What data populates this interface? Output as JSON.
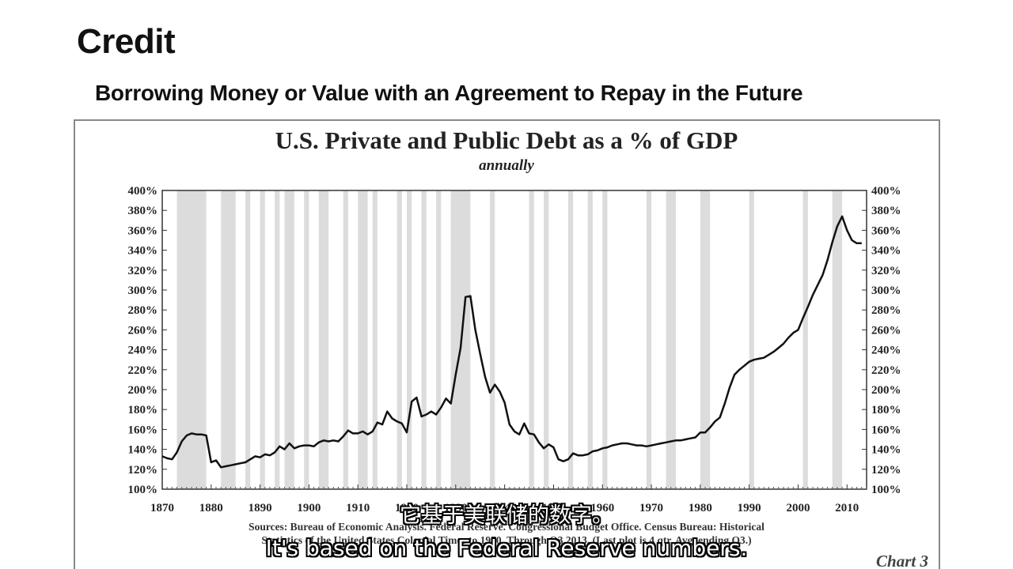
{
  "slide": {
    "title": "Credit",
    "subtitle": "Borrowing Money or Value with an Agreement to Repay in the Future"
  },
  "captions": {
    "zh": "它基于美联储的数字。",
    "en": "It's based on the Federal Reserve numbers."
  },
  "chart_data": {
    "type": "line",
    "title": "U.S. Private and Public Debt as a % of GDP",
    "subtitle": "annually",
    "xlim": [
      1870,
      2014
    ],
    "ylim": [
      100,
      400
    ],
    "y_ticks": [
      100,
      120,
      140,
      160,
      180,
      200,
      220,
      240,
      260,
      280,
      300,
      320,
      340,
      360,
      380,
      400
    ],
    "y_tick_labels": [
      "100%",
      "120%",
      "140%",
      "160%",
      "180%",
      "200%",
      "220%",
      "240%",
      "260%",
      "280%",
      "300%",
      "320%",
      "340%",
      "360%",
      "380%",
      "400%"
    ],
    "x_ticks": [
      1870,
      1880,
      1890,
      1900,
      1910,
      1920,
      1930,
      1940,
      1950,
      1960,
      1970,
      1980,
      1990,
      2000,
      2010
    ],
    "x_tick_labels": [
      "1870",
      "1880",
      "1890",
      "1900",
      "1910",
      "1920",
      "1930",
      "1940",
      "1950",
      "1960",
      "1970",
      "1980",
      "1990",
      "2000",
      "2010"
    ],
    "y_axes": "left and right",
    "grid": false,
    "recession_shading": "grey vertical bands",
    "series": [
      {
        "values": [
          [
            1870,
            133
          ],
          [
            1871,
            131
          ],
          [
            1872,
            130
          ],
          [
            1873,
            137
          ],
          [
            1874,
            148
          ],
          [
            1875,
            154
          ],
          [
            1876,
            156
          ],
          [
            1877,
            155
          ],
          [
            1878,
            155
          ],
          [
            1879,
            154
          ],
          [
            1880,
            127
          ],
          [
            1881,
            129
          ],
          [
            1882,
            122
          ],
          [
            1883,
            123
          ],
          [
            1884,
            124
          ],
          [
            1885,
            125
          ],
          [
            1886,
            126
          ],
          [
            1887,
            127
          ],
          [
            1888,
            130
          ],
          [
            1889,
            133
          ],
          [
            1890,
            132
          ],
          [
            1891,
            135
          ],
          [
            1892,
            134
          ],
          [
            1893,
            137
          ],
          [
            1894,
            143
          ],
          [
            1895,
            140
          ],
          [
            1896,
            146
          ],
          [
            1897,
            141
          ],
          [
            1898,
            143
          ],
          [
            1899,
            144
          ],
          [
            1900,
            144
          ],
          [
            1901,
            143
          ],
          [
            1902,
            147
          ],
          [
            1903,
            149
          ],
          [
            1904,
            148
          ],
          [
            1905,
            149
          ],
          [
            1906,
            148
          ],
          [
            1907,
            153
          ],
          [
            1908,
            159
          ],
          [
            1909,
            156
          ],
          [
            1910,
            156
          ],
          [
            1911,
            158
          ],
          [
            1912,
            155
          ],
          [
            1913,
            158
          ],
          [
            1914,
            167
          ],
          [
            1915,
            165
          ],
          [
            1916,
            178
          ],
          [
            1917,
            171
          ],
          [
            1918,
            168
          ],
          [
            1919,
            166
          ],
          [
            1920,
            157
          ],
          [
            1921,
            188
          ],
          [
            1922,
            192
          ],
          [
            1923,
            173
          ],
          [
            1924,
            175
          ],
          [
            1925,
            178
          ],
          [
            1926,
            175
          ],
          [
            1927,
            182
          ],
          [
            1928,
            191
          ],
          [
            1929,
            186
          ],
          [
            1930,
            215
          ],
          [
            1931,
            242
          ],
          [
            1932,
            293
          ],
          [
            1933,
            294
          ],
          [
            1934,
            260
          ],
          [
            1935,
            236
          ],
          [
            1936,
            213
          ],
          [
            1937,
            197
          ],
          [
            1938,
            205
          ],
          [
            1939,
            198
          ],
          [
            1940,
            187
          ],
          [
            1941,
            165
          ],
          [
            1942,
            158
          ],
          [
            1943,
            155
          ],
          [
            1944,
            166
          ],
          [
            1945,
            156
          ],
          [
            1946,
            155
          ],
          [
            1947,
            147
          ],
          [
            1948,
            141
          ],
          [
            1949,
            145
          ],
          [
            1950,
            142
          ],
          [
            1951,
            130
          ],
          [
            1952,
            128
          ],
          [
            1953,
            130
          ],
          [
            1954,
            136
          ],
          [
            1955,
            134
          ],
          [
            1956,
            134
          ],
          [
            1957,
            135
          ],
          [
            1958,
            138
          ],
          [
            1959,
            139
          ],
          [
            1960,
            141
          ],
          [
            1961,
            142
          ],
          [
            1962,
            144
          ],
          [
            1963,
            145
          ],
          [
            1964,
            146
          ],
          [
            1965,
            146
          ],
          [
            1966,
            145
          ],
          [
            1967,
            144
          ],
          [
            1968,
            144
          ],
          [
            1969,
            143
          ],
          [
            1970,
            144
          ],
          [
            1971,
            145
          ],
          [
            1972,
            146
          ],
          [
            1973,
            147
          ],
          [
            1974,
            148
          ],
          [
            1975,
            149
          ],
          [
            1976,
            149
          ],
          [
            1977,
            150
          ],
          [
            1978,
            151
          ],
          [
            1979,
            152
          ],
          [
            1980,
            157
          ],
          [
            1981,
            157
          ],
          [
            1982,
            162
          ],
          [
            1983,
            168
          ],
          [
            1984,
            172
          ],
          [
            1985,
            186
          ],
          [
            1986,
            202
          ],
          [
            1987,
            215
          ],
          [
            1988,
            220
          ],
          [
            1989,
            224
          ],
          [
            1990,
            228
          ],
          [
            1991,
            230
          ],
          [
            1992,
            231
          ],
          [
            1993,
            232
          ],
          [
            1994,
            235
          ],
          [
            1995,
            238
          ],
          [
            1996,
            242
          ],
          [
            1997,
            246
          ],
          [
            1998,
            252
          ],
          [
            1999,
            257
          ],
          [
            2000,
            260
          ],
          [
            2001,
            272
          ],
          [
            2002,
            283
          ],
          [
            2003,
            295
          ],
          [
            2004,
            305
          ],
          [
            2005,
            315
          ],
          [
            2006,
            330
          ],
          [
            2007,
            348
          ],
          [
            2008,
            364
          ],
          [
            2009,
            374
          ],
          [
            2010,
            360
          ],
          [
            2011,
            350
          ],
          [
            2012,
            347
          ],
          [
            2013,
            347
          ]
        ]
      }
    ],
    "recession_periods": [
      [
        1873,
        1879
      ],
      [
        1882,
        1885
      ],
      [
        1887,
        1888
      ],
      [
        1890,
        1891
      ],
      [
        1893,
        1894
      ],
      [
        1895,
        1897
      ],
      [
        1899,
        1900
      ],
      [
        1902,
        1904
      ],
      [
        1907,
        1908
      ],
      [
        1910,
        1912
      ],
      [
        1913,
        1914
      ],
      [
        1918,
        1919
      ],
      [
        1920,
        1921
      ],
      [
        1923,
        1924
      ],
      [
        1926,
        1927
      ],
      [
        1929,
        1933
      ],
      [
        1937,
        1938
      ],
      [
        1945,
        1946
      ],
      [
        1948,
        1949
      ],
      [
        1953,
        1954
      ],
      [
        1957,
        1958
      ],
      [
        1960,
        1961
      ],
      [
        1969,
        1970
      ],
      [
        1973,
        1975
      ],
      [
        1980,
        1981
      ],
      [
        1981,
        1982
      ],
      [
        1990,
        1991
      ],
      [
        2001,
        2002
      ],
      [
        2007,
        2009
      ]
    ],
    "sources_line1": "Sources: Bureau of Economic Analysis. Federal Reserve. Congressional Budget Office. Census Bureau: Historical",
    "sources_line2": "Statistics of the United States Colonial Times to 1970. Through Q3 2013. (Last plot is 4 qtr. Avg. ending Q3.)",
    "chart_label": "Chart 3",
    "colors": {
      "line": "#111111",
      "shade": "#dcdcdc",
      "text": "#222222"
    }
  }
}
